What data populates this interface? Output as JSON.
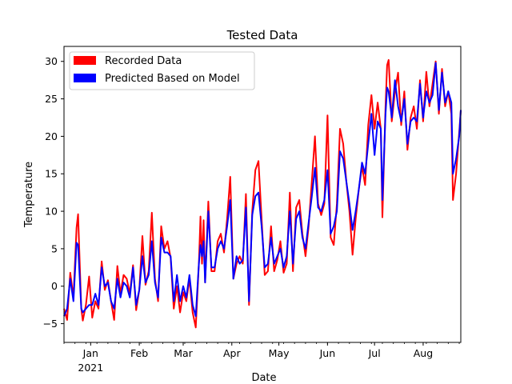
{
  "chart_data": {
    "type": "line",
    "title": "Tested Data",
    "xlabel": "Date",
    "ylabel": "Temperature",
    "x_start": "2020-12-15",
    "x_end": "2021-08-25",
    "ylim": [
      -7.5,
      32
    ],
    "yticks": [
      -5,
      0,
      5,
      10,
      15,
      20,
      25,
      30
    ],
    "xticks": [
      {
        "date": "2021-01-01",
        "label": "Jan",
        "sublabel": "2021"
      },
      {
        "date": "2021-02-01",
        "label": "Feb",
        "sublabel": ""
      },
      {
        "date": "2021-03-01",
        "label": "Mar",
        "sublabel": ""
      },
      {
        "date": "2021-04-01",
        "label": "Apr",
        "sublabel": ""
      },
      {
        "date": "2021-05-01",
        "label": "May",
        "sublabel": ""
      },
      {
        "date": "2021-06-01",
        "label": "Jun",
        "sublabel": ""
      },
      {
        "date": "2021-07-01",
        "label": "Jul",
        "sublabel": ""
      },
      {
        "date": "2021-08-01",
        "label": "Aug",
        "sublabel": ""
      }
    ],
    "grid": false,
    "legend_position": "top-left",
    "series": [
      {
        "name": "Recorded Data",
        "color": "#ff0000",
        "points": [
          [
            "2020-12-15",
            -3.0
          ],
          [
            "2020-12-17",
            -4.5
          ],
          [
            "2020-12-19",
            1.8
          ],
          [
            "2020-12-21",
            -1.5
          ],
          [
            "2020-12-23",
            7.8
          ],
          [
            "2020-12-24",
            9.6
          ],
          [
            "2020-12-26",
            -3.0
          ],
          [
            "2020-12-27",
            -4.6
          ],
          [
            "2020-12-29",
            -2.5
          ],
          [
            "2020-12-31",
            1.3
          ],
          [
            "2021-01-02",
            -4.2
          ],
          [
            "2021-01-04",
            -2.0
          ],
          [
            "2021-01-06",
            -3.0
          ],
          [
            "2021-01-08",
            3.3
          ],
          [
            "2021-01-10",
            -0.5
          ],
          [
            "2021-01-12",
            0.8
          ],
          [
            "2021-01-14",
            -2.0
          ],
          [
            "2021-01-16",
            -4.5
          ],
          [
            "2021-01-18",
            2.7
          ],
          [
            "2021-01-20",
            -1.0
          ],
          [
            "2021-01-22",
            1.5
          ],
          [
            "2021-01-24",
            1.0
          ],
          [
            "2021-01-26",
            -1.0
          ],
          [
            "2021-01-28",
            2.8
          ],
          [
            "2021-01-30",
            -3.2
          ],
          [
            "2021-02-01",
            -0.5
          ],
          [
            "2021-02-03",
            6.7
          ],
          [
            "2021-02-05",
            0.2
          ],
          [
            "2021-02-07",
            2.0
          ],
          [
            "2021-02-09",
            9.8
          ],
          [
            "2021-02-11",
            1.0
          ],
          [
            "2021-02-13",
            -2.0
          ],
          [
            "2021-02-15",
            8.0
          ],
          [
            "2021-02-17",
            5.0
          ],
          [
            "2021-02-19",
            6.0
          ],
          [
            "2021-02-21",
            3.8
          ],
          [
            "2021-02-23",
            -3.0
          ],
          [
            "2021-02-25",
            0.0
          ],
          [
            "2021-02-27",
            -3.5
          ],
          [
            "2021-03-01",
            -0.8
          ],
          [
            "2021-03-03",
            -2.0
          ],
          [
            "2021-03-05",
            1.0
          ],
          [
            "2021-03-07",
            -3.5
          ],
          [
            "2021-03-09",
            -5.5
          ],
          [
            "2021-03-11",
            3.0
          ],
          [
            "2021-03-12",
            9.3
          ],
          [
            "2021-03-13",
            3.0
          ],
          [
            "2021-03-14",
            8.8
          ],
          [
            "2021-03-15",
            0.5
          ],
          [
            "2021-03-17",
            11.3
          ],
          [
            "2021-03-19",
            2.0
          ],
          [
            "2021-03-21",
            2.0
          ],
          [
            "2021-03-23",
            6.0
          ],
          [
            "2021-03-25",
            7.0
          ],
          [
            "2021-03-27",
            4.5
          ],
          [
            "2021-03-29",
            9.0
          ],
          [
            "2021-03-31",
            14.6
          ],
          [
            "2021-04-02",
            1.0
          ],
          [
            "2021-04-04",
            3.0
          ],
          [
            "2021-04-06",
            4.0
          ],
          [
            "2021-04-08",
            3.0
          ],
          [
            "2021-04-10",
            12.3
          ],
          [
            "2021-04-12",
            -2.5
          ],
          [
            "2021-04-14",
            10.0
          ],
          [
            "2021-04-16",
            15.5
          ],
          [
            "2021-04-18",
            16.7
          ],
          [
            "2021-04-20",
            9.0
          ],
          [
            "2021-04-22",
            1.5
          ],
          [
            "2021-04-24",
            2.0
          ],
          [
            "2021-04-26",
            8.0
          ],
          [
            "2021-04-28",
            2.0
          ],
          [
            "2021-04-30",
            3.5
          ],
          [
            "2021-05-02",
            6.0
          ],
          [
            "2021-05-04",
            1.8
          ],
          [
            "2021-05-06",
            3.0
          ],
          [
            "2021-05-08",
            12.5
          ],
          [
            "2021-05-10",
            2.0
          ],
          [
            "2021-05-12",
            10.5
          ],
          [
            "2021-05-14",
            11.5
          ],
          [
            "2021-05-16",
            7.0
          ],
          [
            "2021-05-18",
            4.0
          ],
          [
            "2021-05-20",
            8.0
          ],
          [
            "2021-05-22",
            14.0
          ],
          [
            "2021-05-24",
            20.0
          ],
          [
            "2021-05-26",
            11.0
          ],
          [
            "2021-05-28",
            9.5
          ],
          [
            "2021-05-30",
            11.0
          ],
          [
            "2021-06-01",
            22.8
          ],
          [
            "2021-06-03",
            6.5
          ],
          [
            "2021-06-05",
            5.5
          ],
          [
            "2021-06-07",
            11.0
          ],
          [
            "2021-06-09",
            21.0
          ],
          [
            "2021-06-11",
            19.0
          ],
          [
            "2021-06-13",
            14.0
          ],
          [
            "2021-06-15",
            10.0
          ],
          [
            "2021-06-17",
            4.2
          ],
          [
            "2021-06-19",
            9.0
          ],
          [
            "2021-06-21",
            13.0
          ],
          [
            "2021-06-23",
            16.0
          ],
          [
            "2021-06-25",
            13.5
          ],
          [
            "2021-06-27",
            21.5
          ],
          [
            "2021-06-29",
            25.5
          ],
          [
            "2021-07-01",
            21.0
          ],
          [
            "2021-07-03",
            24.5
          ],
          [
            "2021-07-05",
            21.0
          ],
          [
            "2021-07-06",
            9.2
          ],
          [
            "2021-07-08",
            24.0
          ],
          [
            "2021-07-09",
            29.5
          ],
          [
            "2021-07-10",
            30.2
          ],
          [
            "2021-07-12",
            22.0
          ],
          [
            "2021-07-14",
            26.0
          ],
          [
            "2021-07-16",
            28.5
          ],
          [
            "2021-07-18",
            21.5
          ],
          [
            "2021-07-20",
            26.0
          ],
          [
            "2021-07-22",
            18.2
          ],
          [
            "2021-07-24",
            22.5
          ],
          [
            "2021-07-26",
            24.0
          ],
          [
            "2021-07-28",
            21.0
          ],
          [
            "2021-07-30",
            27.5
          ],
          [
            "2021-08-01",
            22.0
          ],
          [
            "2021-08-03",
            28.6
          ],
          [
            "2021-08-05",
            24.0
          ],
          [
            "2021-08-07",
            27.0
          ],
          [
            "2021-08-09",
            30.0
          ],
          [
            "2021-08-11",
            23.0
          ],
          [
            "2021-08-13",
            29.0
          ],
          [
            "2021-08-15",
            24.0
          ],
          [
            "2021-08-17",
            26.0
          ],
          [
            "2021-08-19",
            23.0
          ],
          [
            "2021-08-20",
            11.5
          ],
          [
            "2021-08-22",
            15.0
          ],
          [
            "2021-08-24",
            20.5
          ],
          [
            "2021-08-25",
            23.5
          ]
        ]
      },
      {
        "name": "Predicted Based on Model",
        "color": "#0000ff",
        "points": [
          [
            "2020-12-15",
            -4.0
          ],
          [
            "2020-12-17",
            -3.0
          ],
          [
            "2020-12-19",
            1.0
          ],
          [
            "2020-12-21",
            -2.0
          ],
          [
            "2020-12-23",
            5.8
          ],
          [
            "2020-12-24",
            5.5
          ],
          [
            "2020-12-26",
            -3.0
          ],
          [
            "2020-12-27",
            -3.5
          ],
          [
            "2020-12-29",
            -3.0
          ],
          [
            "2020-12-31",
            -2.5
          ],
          [
            "2021-01-02",
            -2.5
          ],
          [
            "2021-01-04",
            -1.0
          ],
          [
            "2021-01-06",
            -2.5
          ],
          [
            "2021-01-08",
            2.5
          ],
          [
            "2021-01-10",
            0.0
          ],
          [
            "2021-01-12",
            0.5
          ],
          [
            "2021-01-14",
            -2.0
          ],
          [
            "2021-01-16",
            -3.0
          ],
          [
            "2021-01-18",
            1.0
          ],
          [
            "2021-01-20",
            -1.5
          ],
          [
            "2021-01-22",
            0.5
          ],
          [
            "2021-01-24",
            0.0
          ],
          [
            "2021-01-26",
            -1.5
          ],
          [
            "2021-01-28",
            2.5
          ],
          [
            "2021-01-30",
            -2.5
          ],
          [
            "2021-02-01",
            -0.5
          ],
          [
            "2021-02-03",
            4.0
          ],
          [
            "2021-02-05",
            0.5
          ],
          [
            "2021-02-07",
            1.5
          ],
          [
            "2021-02-09",
            6.0
          ],
          [
            "2021-02-11",
            0.5
          ],
          [
            "2021-02-13",
            -1.5
          ],
          [
            "2021-02-15",
            6.5
          ],
          [
            "2021-02-17",
            4.5
          ],
          [
            "2021-02-19",
            4.5
          ],
          [
            "2021-02-21",
            4.0
          ],
          [
            "2021-02-23",
            -2.0
          ],
          [
            "2021-02-25",
            1.5
          ],
          [
            "2021-02-27",
            -2.0
          ],
          [
            "2021-03-01",
            0.0
          ],
          [
            "2021-03-03",
            -1.5
          ],
          [
            "2021-03-05",
            1.5
          ],
          [
            "2021-03-07",
            -2.5
          ],
          [
            "2021-03-09",
            -4.0
          ],
          [
            "2021-03-11",
            3.0
          ],
          [
            "2021-03-12",
            5.5
          ],
          [
            "2021-03-13",
            4.0
          ],
          [
            "2021-03-14",
            6.0
          ],
          [
            "2021-03-15",
            0.5
          ],
          [
            "2021-03-17",
            10.0
          ],
          [
            "2021-03-19",
            2.5
          ],
          [
            "2021-03-21",
            2.5
          ],
          [
            "2021-03-23",
            5.0
          ],
          [
            "2021-03-25",
            6.0
          ],
          [
            "2021-03-27",
            5.0
          ],
          [
            "2021-03-29",
            8.0
          ],
          [
            "2021-03-31",
            11.5
          ],
          [
            "2021-04-02",
            1.0
          ],
          [
            "2021-04-04",
            4.0
          ],
          [
            "2021-04-06",
            3.0
          ],
          [
            "2021-04-08",
            3.5
          ],
          [
            "2021-04-10",
            10.5
          ],
          [
            "2021-04-12",
            -2.0
          ],
          [
            "2021-04-14",
            9.5
          ],
          [
            "2021-04-16",
            12.0
          ],
          [
            "2021-04-18",
            12.5
          ],
          [
            "2021-04-20",
            8.0
          ],
          [
            "2021-04-22",
            2.5
          ],
          [
            "2021-04-24",
            3.0
          ],
          [
            "2021-04-26",
            6.5
          ],
          [
            "2021-04-28",
            3.0
          ],
          [
            "2021-04-30",
            4.0
          ],
          [
            "2021-05-02",
            5.0
          ],
          [
            "2021-05-04",
            2.5
          ],
          [
            "2021-05-06",
            4.0
          ],
          [
            "2021-05-08",
            10.0
          ],
          [
            "2021-05-10",
            3.0
          ],
          [
            "2021-05-12",
            9.0
          ],
          [
            "2021-05-14",
            10.0
          ],
          [
            "2021-05-16",
            6.5
          ],
          [
            "2021-05-18",
            5.0
          ],
          [
            "2021-05-20",
            8.5
          ],
          [
            "2021-05-22",
            12.0
          ],
          [
            "2021-05-24",
            15.8
          ],
          [
            "2021-05-26",
            10.5
          ],
          [
            "2021-05-28",
            10.0
          ],
          [
            "2021-05-30",
            11.5
          ],
          [
            "2021-06-01",
            15.5
          ],
          [
            "2021-06-03",
            7.0
          ],
          [
            "2021-06-05",
            8.0
          ],
          [
            "2021-06-07",
            10.0
          ],
          [
            "2021-06-09",
            18.0
          ],
          [
            "2021-06-11",
            17.0
          ],
          [
            "2021-06-13",
            14.0
          ],
          [
            "2021-06-15",
            11.0
          ],
          [
            "2021-06-17",
            7.5
          ],
          [
            "2021-06-19",
            10.0
          ],
          [
            "2021-06-21",
            13.0
          ],
          [
            "2021-06-23",
            16.5
          ],
          [
            "2021-06-25",
            15.0
          ],
          [
            "2021-06-27",
            19.0
          ],
          [
            "2021-06-29",
            23.0
          ],
          [
            "2021-07-01",
            17.5
          ],
          [
            "2021-07-03",
            22.0
          ],
          [
            "2021-07-05",
            21.0
          ],
          [
            "2021-07-06",
            11.5
          ],
          [
            "2021-07-08",
            23.0
          ],
          [
            "2021-07-09",
            26.5
          ],
          [
            "2021-07-10",
            26.0
          ],
          [
            "2021-07-12",
            22.5
          ],
          [
            "2021-07-14",
            27.5
          ],
          [
            "2021-07-16",
            24.0
          ],
          [
            "2021-07-18",
            22.0
          ],
          [
            "2021-07-20",
            25.0
          ],
          [
            "2021-07-22",
            19.0
          ],
          [
            "2021-07-24",
            22.0
          ],
          [
            "2021-07-26",
            22.5
          ],
          [
            "2021-07-28",
            22.0
          ],
          [
            "2021-07-30",
            27.0
          ],
          [
            "2021-08-01",
            22.5
          ],
          [
            "2021-08-03",
            26.0
          ],
          [
            "2021-08-05",
            24.5
          ],
          [
            "2021-08-07",
            25.5
          ],
          [
            "2021-08-09",
            29.8
          ],
          [
            "2021-08-11",
            23.5
          ],
          [
            "2021-08-13",
            28.5
          ],
          [
            "2021-08-15",
            24.5
          ],
          [
            "2021-08-17",
            26.0
          ],
          [
            "2021-08-19",
            24.5
          ],
          [
            "2021-08-20",
            15.0
          ],
          [
            "2021-08-22",
            17.0
          ],
          [
            "2021-08-24",
            20.0
          ],
          [
            "2021-08-25",
            23.5
          ]
        ]
      }
    ]
  }
}
